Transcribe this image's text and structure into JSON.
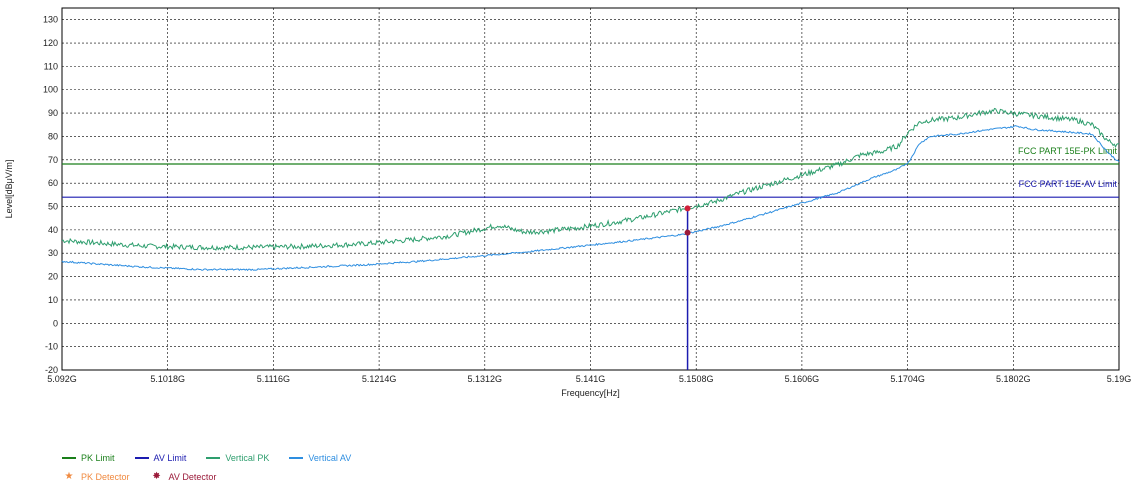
{
  "chart_data": {
    "type": "line",
    "xlabel": "Frequency[Hz]",
    "ylabel": "Level[dBμV/m]",
    "xlim": [
      5.092,
      5.19
    ],
    "ylim": [
      -20,
      135
    ],
    "x_ticks": [
      "5.092G",
      "5.1018G",
      "5.1116G",
      "5.1214G",
      "5.1312G",
      "5.141G",
      "5.1508G",
      "5.1606G",
      "5.1704G",
      "5.1802G",
      "5.19G"
    ],
    "y_ticks": [
      "-20",
      "-10",
      "0",
      "10",
      "20",
      "30",
      "40",
      "50",
      "60",
      "70",
      "80",
      "90",
      "100",
      "110",
      "120",
      "130"
    ],
    "grid": true,
    "limits": [
      {
        "name": "PK Limit",
        "value": 68.2,
        "label": "FCC PART 15E-PK Limit",
        "color": "#1a7f1a"
      },
      {
        "name": "AV Limit",
        "value": 54.0,
        "label": "FCC PART 15E-AV Limit",
        "color": "#1c1cb0"
      }
    ],
    "series": [
      {
        "name": "Vertical PK",
        "color": "#2e9e6e",
        "x": [
          5.092,
          5.0965,
          5.1,
          5.105,
          5.11,
          5.115,
          5.12,
          5.125,
          5.128,
          5.13,
          5.1325,
          5.134,
          5.135,
          5.137,
          5.14,
          5.143,
          5.146,
          5.149,
          5.1505,
          5.1525,
          5.155,
          5.158,
          5.161,
          5.164,
          5.166,
          5.168,
          5.1695,
          5.1705,
          5.1715,
          5.1725,
          5.175,
          5.177,
          5.1785,
          5.18,
          5.182,
          5.184,
          5.186,
          5.1875,
          5.189,
          5.19
        ],
        "values": [
          35.5,
          34,
          33,
          32.5,
          32.5,
          33,
          34,
          36,
          37.5,
          39.5,
          42,
          40,
          39,
          39.5,
          41,
          43,
          45.5,
          48.5,
          50,
          52,
          56,
          60,
          64,
          68,
          72,
          73.5,
          76,
          82,
          86,
          87,
          88,
          90,
          91,
          90,
          89,
          88,
          87,
          85,
          78,
          76
        ]
      },
      {
        "name": "Vertical AV",
        "color": "#2e8ee0",
        "x": [
          5.092,
          5.0965,
          5.1,
          5.105,
          5.11,
          5.115,
          5.12,
          5.125,
          5.13,
          5.135,
          5.14,
          5.145,
          5.1495,
          5.1525,
          5.155,
          5.158,
          5.161,
          5.164,
          5.167,
          5.1695,
          5.1705,
          5.1715,
          5.1725,
          5.175,
          5.178,
          5.18,
          5.1805,
          5.182,
          5.185,
          5.1875,
          5.189,
          5.19
        ],
        "values": [
          26.5,
          25,
          24,
          23,
          23,
          24,
          25,
          26.5,
          28.5,
          30.5,
          33,
          35.5,
          38,
          41,
          44,
          48,
          52,
          56,
          62,
          66,
          69,
          77,
          80,
          81,
          83,
          84,
          84.5,
          83,
          82,
          81,
          73,
          69
        ]
      }
    ],
    "detectors": [
      {
        "name": "PK Detector",
        "color": "#f08a40",
        "symbol": "★",
        "x": 5.15,
        "value": 49.2
      },
      {
        "name": "AV Detector",
        "color": "#9b1b3a",
        "symbol": "✸",
        "x": 5.15,
        "value": 38.8
      }
    ],
    "marker_line": {
      "x": 5.15,
      "color": "#1c1cb0"
    },
    "legend_placement": "bottom-left"
  }
}
